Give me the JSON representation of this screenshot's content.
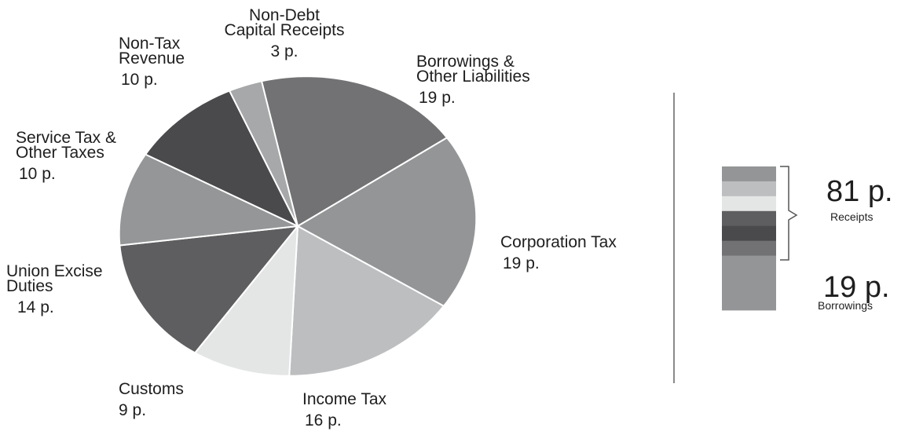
{
  "chart_data": {
    "type": "pie",
    "title": "",
    "slices": [
      {
        "label": "Borrowings & Other Liabilities",
        "label_lines": [
          "Borrowings &",
          "Other Liabilities"
        ],
        "value": 19,
        "value_label": "19 p.",
        "color": "#727274"
      },
      {
        "label": "Corporation Tax",
        "label_lines": [
          "Corporation Tax"
        ],
        "value": 19,
        "value_label": "19 p.",
        "color": "#939596"
      },
      {
        "label": "Income Tax",
        "label_lines": [
          "Income Tax"
        ],
        "value": 16,
        "value_label": "16 p.",
        "color": "#bdbec0"
      },
      {
        "label": "Customs",
        "label_lines": [
          "Customs"
        ],
        "value": 9,
        "value_label": "9 p.",
        "color": "#e4e5e5"
      },
      {
        "label": "Union Excise Duties",
        "label_lines": [
          "Union Excise",
          "Duties"
        ],
        "value": 14,
        "value_label": "14 p.",
        "color": "#5e5e60"
      },
      {
        "label": "Service Tax & Other Taxes",
        "label_lines": [
          "Service Tax &",
          "Other Taxes"
        ],
        "value": 10,
        "value_label": "10 p.",
        "color": "#949697"
      },
      {
        "label": "Non-Tax Revenue",
        "label_lines": [
          "Non-Tax",
          "Revenue"
        ],
        "value": 10,
        "value_label": "10 p.",
        "color": "#4a4a4c"
      },
      {
        "label": "Non-Debt Capital Receipts",
        "label_lines": [
          "Non-Debt",
          "Capital Receipts"
        ],
        "value": 3,
        "value_label": "3 p.",
        "color": "#a6a8a9"
      }
    ],
    "summary_bar": {
      "segments": [
        {
          "value": 3,
          "color": "#939596"
        },
        {
          "value": 3,
          "color": "#bdbec0"
        },
        {
          "value": 3,
          "color": "#e4e5e5"
        },
        {
          "value": 3,
          "color": "#5e5e60"
        },
        {
          "value": 3,
          "color": "#4a4a4c"
        },
        {
          "value": 3,
          "color": "#727274"
        },
        {
          "value": 11,
          "color": "#939596"
        }
      ],
      "receipts": {
        "value_label": "81 p.",
        "caption": "Receipts"
      },
      "borrowings": {
        "value_label": "19 p.",
        "caption": "Borrowings"
      }
    }
  }
}
